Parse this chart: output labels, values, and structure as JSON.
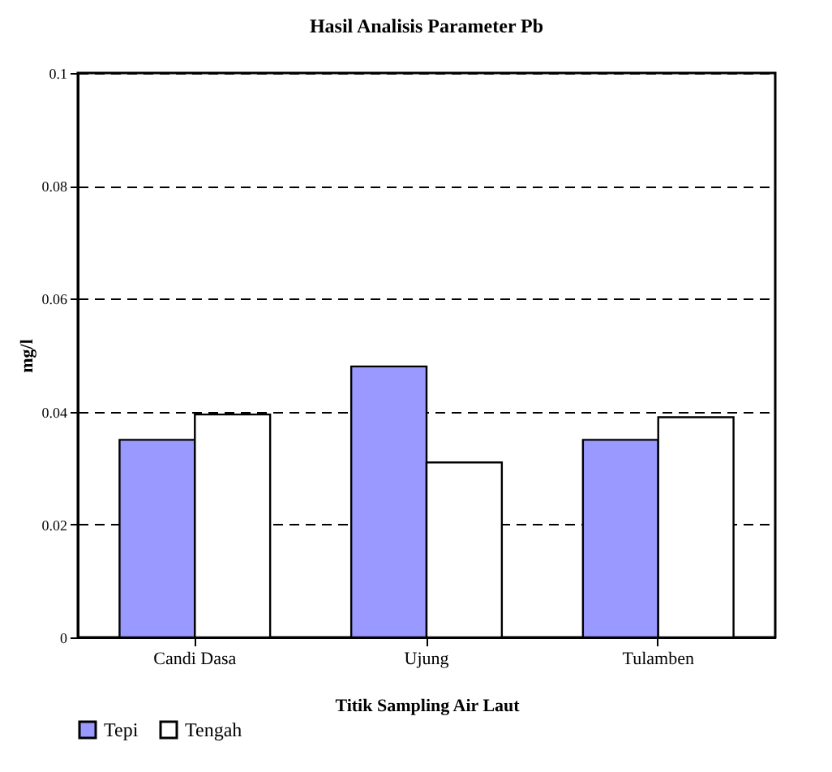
{
  "chart_data": {
    "type": "bar",
    "title": "Hasil Analisis Parameter Pb",
    "xlabel": "Titik Sampling Air Laut",
    "ylabel": "mg/l",
    "categories": [
      "Candi Dasa",
      "Ujung",
      "Tulamben"
    ],
    "series": [
      {
        "name": "Tepi",
        "color": "#9999ff",
        "values": [
          0.035,
          0.048,
          0.035
        ]
      },
      {
        "name": "Tengah",
        "color": "#ffffff",
        "values": [
          0.0395,
          0.031,
          0.039
        ]
      }
    ],
    "ylim": [
      0,
      0.1
    ],
    "yticks": [
      0,
      0.02,
      0.04,
      0.06,
      0.08,
      0.1
    ],
    "grid": "y",
    "legend": "bottom"
  }
}
